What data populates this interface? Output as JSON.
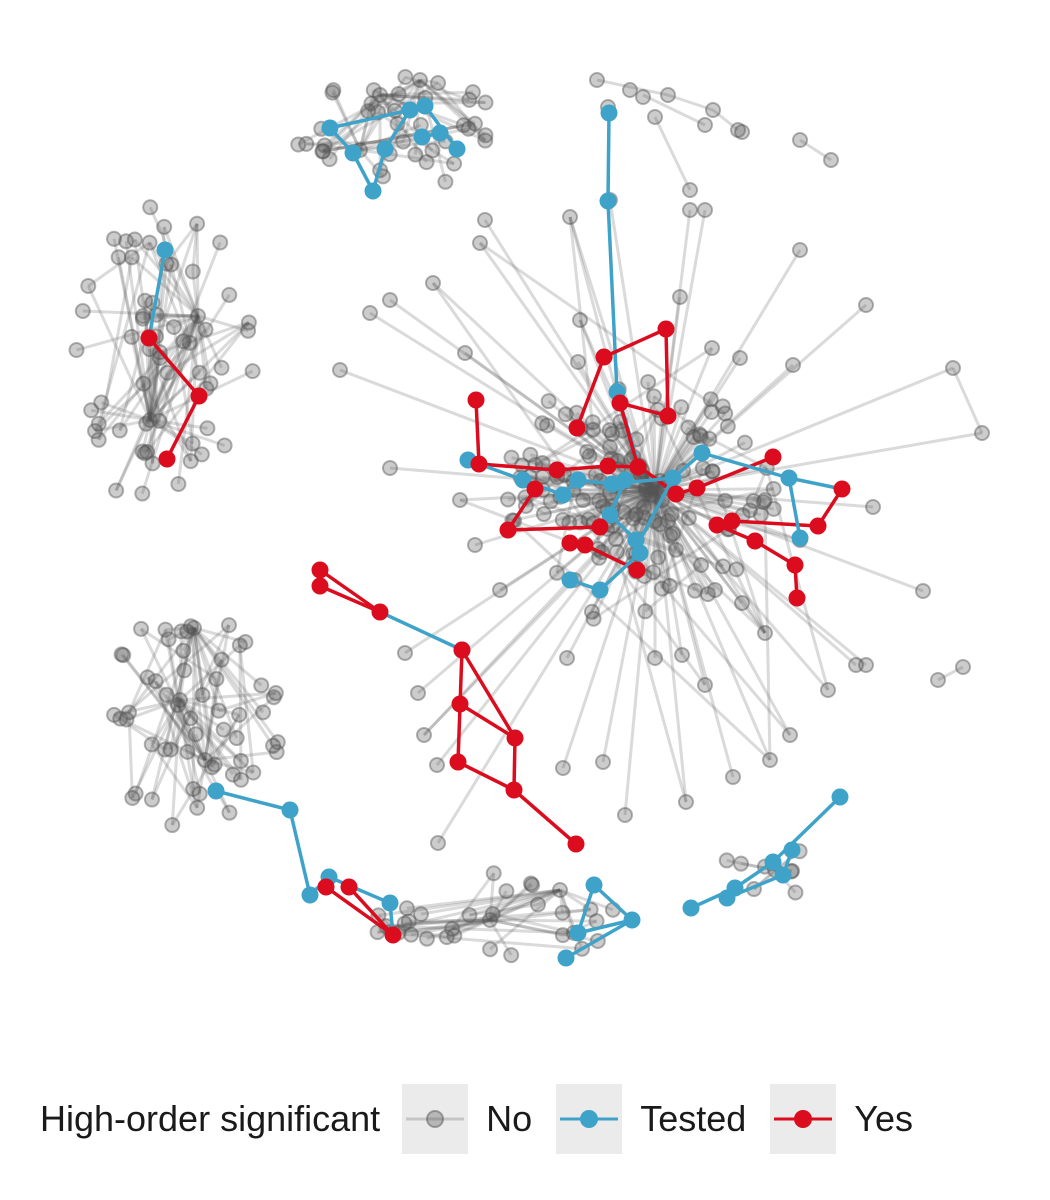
{
  "legend": {
    "title": "High-order significant",
    "items": [
      {
        "key": "no",
        "label": "No",
        "color": "#555555",
        "opacity": 0.25
      },
      {
        "key": "tested",
        "label": "Tested",
        "color": "#3fa3c9",
        "opacity": 1
      },
      {
        "key": "yes",
        "label": "Yes",
        "color": "#da0c1e",
        "opacity": 1
      }
    ]
  },
  "colors": {
    "no": "#555555",
    "tested": "#3fa3c9",
    "yes": "#da0c1e"
  }
}
